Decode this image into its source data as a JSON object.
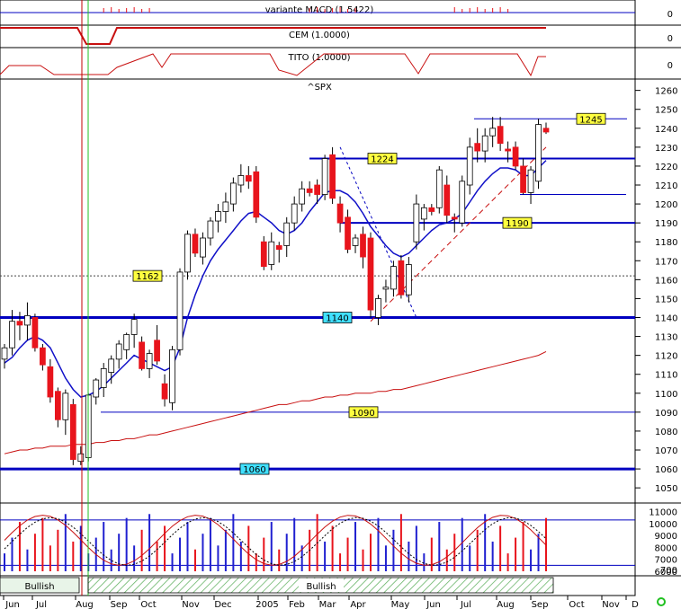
{
  "chart_data": {
    "type": "candlestick",
    "main_panel": {
      "title": "^SPX",
      "y_ticks": [
        1050,
        1060,
        1070,
        1080,
        1090,
        1100,
        1110,
        1120,
        1130,
        1140,
        1150,
        1160,
        1170,
        1180,
        1190,
        1200,
        1210,
        1220,
        1230,
        1240,
        1250,
        1260
      ],
      "ylim": [
        1042,
        1266
      ],
      "candles": [
        {
          "o": 1118,
          "h": 1126,
          "l": 1113,
          "c": 1124
        },
        {
          "o": 1124,
          "h": 1144,
          "l": 1120,
          "c": 1138
        },
        {
          "o": 1138,
          "h": 1143,
          "l": 1128,
          "c": 1136
        },
        {
          "o": 1136,
          "h": 1148,
          "l": 1128,
          "c": 1141
        },
        {
          "o": 1140,
          "h": 1142,
          "l": 1122,
          "c": 1124
        },
        {
          "o": 1124,
          "h": 1126,
          "l": 1112,
          "c": 1115
        },
        {
          "o": 1114,
          "h": 1118,
          "l": 1095,
          "c": 1098
        },
        {
          "o": 1101,
          "h": 1103,
          "l": 1082,
          "c": 1086
        },
        {
          "o": 1086,
          "h": 1102,
          "l": 1078,
          "c": 1100
        },
        {
          "o": 1094,
          "h": 1097,
          "l": 1062,
          "c": 1065
        },
        {
          "o": 1064,
          "h": 1072,
          "l": 1062,
          "c": 1068
        },
        {
          "o": 1066,
          "h": 1100,
          "l": 1064,
          "c": 1099
        },
        {
          "o": 1098,
          "h": 1108,
          "l": 1094,
          "c": 1107
        },
        {
          "o": 1103,
          "h": 1116,
          "l": 1098,
          "c": 1113
        },
        {
          "o": 1111,
          "h": 1120,
          "l": 1105,
          "c": 1118
        },
        {
          "o": 1118,
          "h": 1128,
          "l": 1113,
          "c": 1126
        },
        {
          "o": 1123,
          "h": 1132,
          "l": 1118,
          "c": 1131
        },
        {
          "o": 1131,
          "h": 1142,
          "l": 1124,
          "c": 1139
        },
        {
          "o": 1127,
          "h": 1130,
          "l": 1112,
          "c": 1113
        },
        {
          "o": 1113,
          "h": 1123,
          "l": 1108,
          "c": 1121
        },
        {
          "o": 1128,
          "h": 1136,
          "l": 1115,
          "c": 1117
        },
        {
          "o": 1105,
          "h": 1110,
          "l": 1093,
          "c": 1097
        },
        {
          "o": 1095,
          "h": 1125,
          "l": 1091,
          "c": 1123
        },
        {
          "o": 1123,
          "h": 1166,
          "l": 1120,
          "c": 1164
        },
        {
          "o": 1164,
          "h": 1186,
          "l": 1160,
          "c": 1184
        },
        {
          "o": 1184,
          "h": 1187,
          "l": 1172,
          "c": 1174
        },
        {
          "o": 1172,
          "h": 1185,
          "l": 1168,
          "c": 1182
        },
        {
          "o": 1182,
          "h": 1193,
          "l": 1178,
          "c": 1191
        },
        {
          "o": 1191,
          "h": 1200,
          "l": 1185,
          "c": 1196
        },
        {
          "o": 1196,
          "h": 1206,
          "l": 1190,
          "c": 1201
        },
        {
          "o": 1200,
          "h": 1214,
          "l": 1196,
          "c": 1211
        },
        {
          "o": 1210,
          "h": 1221,
          "l": 1206,
          "c": 1215
        },
        {
          "o": 1215,
          "h": 1220,
          "l": 1208,
          "c": 1212
        },
        {
          "o": 1217,
          "h": 1220,
          "l": 1190,
          "c": 1193
        },
        {
          "o": 1180,
          "h": 1183,
          "l": 1165,
          "c": 1167
        },
        {
          "o": 1168,
          "h": 1185,
          "l": 1165,
          "c": 1180
        },
        {
          "o": 1178,
          "h": 1180,
          "l": 1169,
          "c": 1176
        },
        {
          "o": 1178,
          "h": 1193,
          "l": 1172,
          "c": 1190
        },
        {
          "o": 1190,
          "h": 1204,
          "l": 1186,
          "c": 1200
        },
        {
          "o": 1200,
          "h": 1212,
          "l": 1196,
          "c": 1208
        },
        {
          "o": 1208,
          "h": 1212,
          "l": 1204,
          "c": 1206
        },
        {
          "o": 1210,
          "h": 1213,
          "l": 1200,
          "c": 1205
        },
        {
          "o": 1205,
          "h": 1226,
          "l": 1202,
          "c": 1224
        },
        {
          "o": 1226,
          "h": 1230,
          "l": 1200,
          "c": 1203
        },
        {
          "o": 1200,
          "h": 1204,
          "l": 1185,
          "c": 1190
        },
        {
          "o": 1193,
          "h": 1197,
          "l": 1174,
          "c": 1176
        },
        {
          "o": 1178,
          "h": 1184,
          "l": 1174,
          "c": 1182
        },
        {
          "o": 1184,
          "h": 1188,
          "l": 1166,
          "c": 1172
        },
        {
          "o": 1182,
          "h": 1185,
          "l": 1140,
          "c": 1144
        },
        {
          "o": 1140,
          "h": 1152,
          "l": 1136,
          "c": 1150
        },
        {
          "o": 1155,
          "h": 1160,
          "l": 1148,
          "c": 1156
        },
        {
          "o": 1155,
          "h": 1170,
          "l": 1151,
          "c": 1167
        },
        {
          "o": 1170,
          "h": 1173,
          "l": 1150,
          "c": 1152
        },
        {
          "o": 1152,
          "h": 1172,
          "l": 1148,
          "c": 1168
        },
        {
          "o": 1180,
          "h": 1205,
          "l": 1176,
          "c": 1200
        },
        {
          "o": 1192,
          "h": 1200,
          "l": 1186,
          "c": 1198
        },
        {
          "o": 1198,
          "h": 1200,
          "l": 1194,
          "c": 1196
        },
        {
          "o": 1198,
          "h": 1220,
          "l": 1195,
          "c": 1218
        },
        {
          "o": 1210,
          "h": 1215,
          "l": 1190,
          "c": 1194
        },
        {
          "o": 1193,
          "h": 1195,
          "l": 1185,
          "c": 1192
        },
        {
          "o": 1190,
          "h": 1215,
          "l": 1188,
          "c": 1212
        },
        {
          "o": 1210,
          "h": 1235,
          "l": 1205,
          "c": 1230
        },
        {
          "o": 1232,
          "h": 1240,
          "l": 1222,
          "c": 1228
        },
        {
          "o": 1228,
          "h": 1240,
          "l": 1222,
          "c": 1236
        },
        {
          "o": 1236,
          "h": 1246,
          "l": 1230,
          "c": 1240
        },
        {
          "o": 1241,
          "h": 1246,
          "l": 1228,
          "c": 1232
        },
        {
          "o": 1229,
          "h": 1233,
          "l": 1222,
          "c": 1228
        },
        {
          "o": 1230,
          "h": 1233,
          "l": 1218,
          "c": 1220
        },
        {
          "o": 1220,
          "h": 1224,
          "l": 1205,
          "c": 1206
        },
        {
          "o": 1206,
          "h": 1220,
          "l": 1200,
          "c": 1218
        },
        {
          "o": 1212,
          "h": 1245,
          "l": 1208,
          "c": 1242
        },
        {
          "o": 1240,
          "h": 1243,
          "l": 1237,
          "c": 1238
        }
      ],
      "ma_short": [
        1116,
        1119,
        1124,
        1128,
        1130,
        1128,
        1124,
        1116,
        1108,
        1102,
        1098,
        1099,
        1101,
        1104,
        1108,
        1112,
        1116,
        1120,
        1118,
        1116,
        1114,
        1112,
        1114,
        1124,
        1140,
        1152,
        1162,
        1170,
        1176,
        1181,
        1186,
        1191,
        1195,
        1196,
        1193,
        1190,
        1186,
        1184,
        1186,
        1190,
        1196,
        1201,
        1206,
        1207,
        1207,
        1205,
        1201,
        1195,
        1188,
        1183,
        1178,
        1174,
        1172,
        1174,
        1178,
        1182,
        1186,
        1189,
        1190,
        1192,
        1195,
        1201,
        1207,
        1212,
        1216,
        1219,
        1219,
        1218,
        1215,
        1215,
        1219,
        1223
      ],
      "ma_long": [
        1068,
        1069,
        1070,
        1070,
        1071,
        1071,
        1072,
        1072,
        1072,
        1073,
        1073,
        1073,
        1074,
        1074,
        1075,
        1075,
        1076,
        1076,
        1077,
        1078,
        1078,
        1079,
        1080,
        1081,
        1082,
        1083,
        1084,
        1085,
        1086,
        1087,
        1088,
        1089,
        1090,
        1091,
        1092,
        1093,
        1094,
        1094,
        1095,
        1096,
        1096,
        1097,
        1098,
        1098,
        1099,
        1099,
        1100,
        1100,
        1100,
        1101,
        1101,
        1102,
        1102,
        1103,
        1104,
        1105,
        1106,
        1107,
        1108,
        1109,
        1110,
        1111,
        1112,
        1113,
        1114,
        1115,
        1116,
        1117,
        1118,
        1119,
        1120,
        1122
      ],
      "levels": [
        {
          "value": 1060,
          "label": "1060",
          "kind": "heavy",
          "label_style": "cyan"
        },
        {
          "value": 1090,
          "label": "1090",
          "kind": "thin",
          "label_style": "yellow"
        },
        {
          "value": 1140,
          "label": "1140",
          "kind": "heavy",
          "label_style": "cyan"
        },
        {
          "value": 1162,
          "label": "1162",
          "kind": "dashed",
          "label_style": "yellow"
        },
        {
          "value": 1190,
          "label": "1190",
          "kind": "medium",
          "label_style": "yellow"
        },
        {
          "value": 1205,
          "label": "",
          "kind": "thin"
        },
        {
          "value": 1224,
          "label": "1224",
          "kind": "medium",
          "label_style": "yellow"
        },
        {
          "value": 1245,
          "label": "1245",
          "kind": "thin",
          "label_style": "yellow"
        }
      ]
    },
    "macd_panel": {
      "title": "variante MACD (1.5422)",
      "value_label": "0"
    },
    "cem_panel": {
      "title": "CEM (1.0000)",
      "value_label": "0"
    },
    "tito_panel": {
      "title": "TITO (1.0000)",
      "value_label": "0"
    },
    "volume_panel": {
      "y_ticks": [
        "11000",
        "10000",
        "9000",
        "8000",
        "7000",
        "6000"
      ],
      "last_tick": "700"
    },
    "x_axis": {
      "months": [
        "Jun",
        "Jul",
        "Aug",
        "Sep",
        "Oct",
        "Nov",
        "Dec",
        "2005",
        "Feb",
        "Mar",
        "Apr",
        "May",
        "Jun",
        "Jul",
        "Aug",
        "Sep",
        "Oct",
        "Nov",
        "D"
      ]
    },
    "trend_bands": [
      {
        "label": "Bullish",
        "style": "plain"
      },
      {
        "label": "Bullish",
        "style": "hatched"
      }
    ]
  },
  "colors": {
    "up_candle": "#ffffff",
    "down_candle": "#e8141c",
    "ma_short": "#1010c8",
    "ma_long": "#c81010",
    "level_line": "#0000c0",
    "grid": "#c8c8c8",
    "label_yellow": "#ffff40",
    "label_cyan": "#40e0ff",
    "vertical_green": "#20c020",
    "vertical_red": "#c00000"
  }
}
